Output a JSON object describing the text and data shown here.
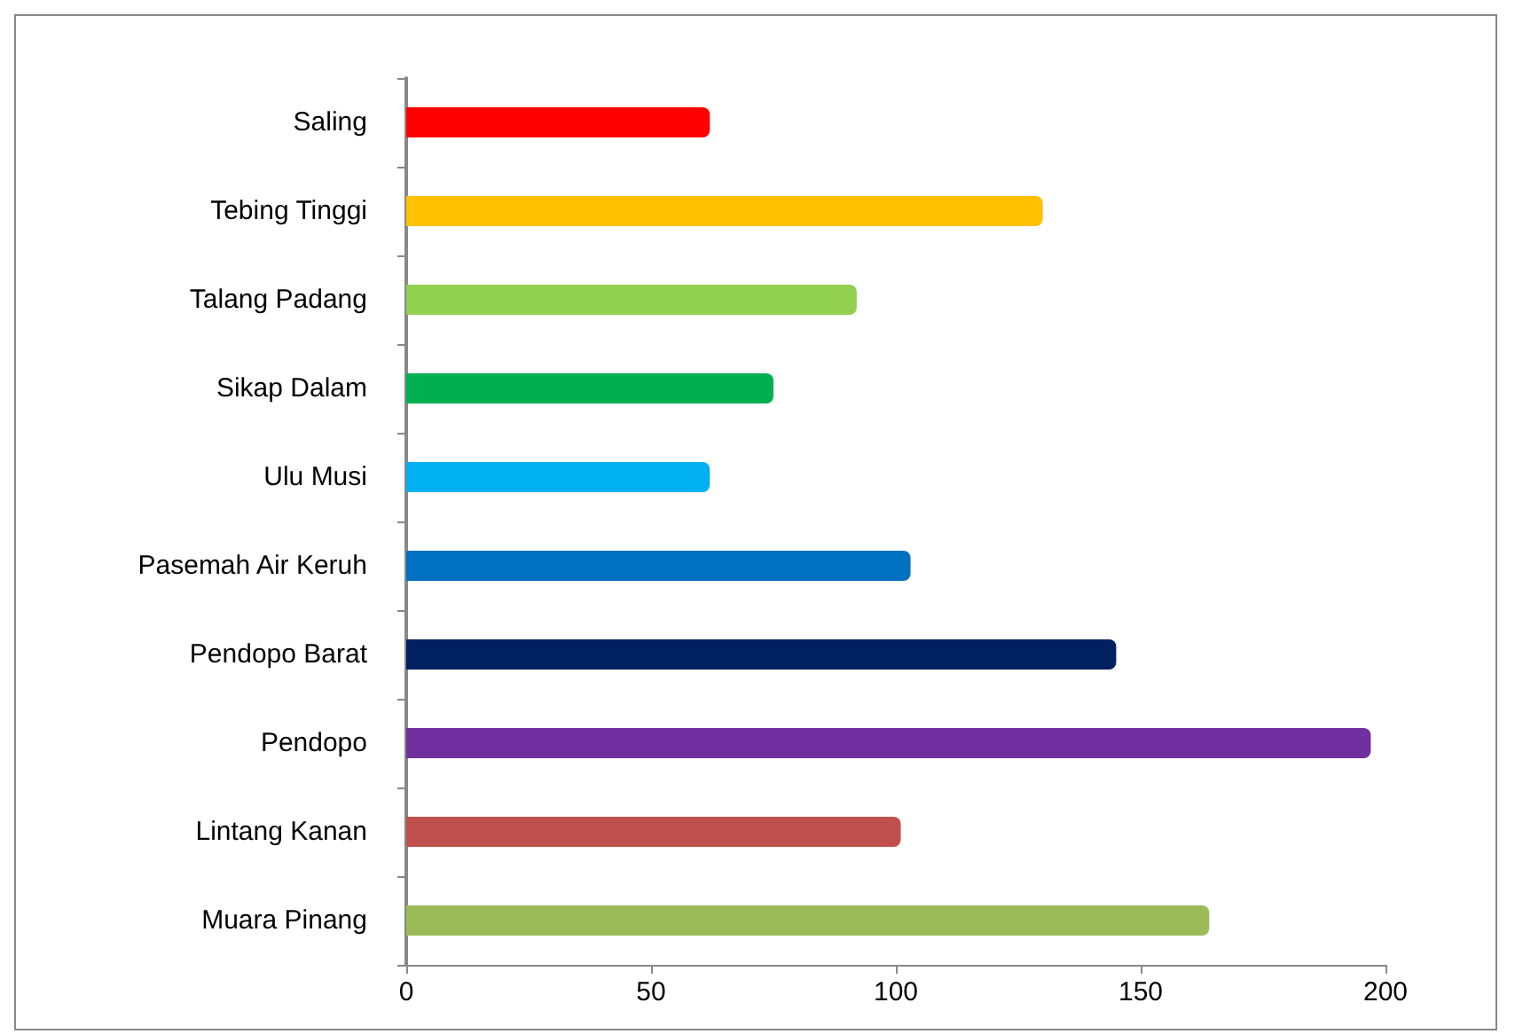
{
  "chart_data": {
    "type": "bar",
    "orientation": "horizontal",
    "categories": [
      "Saling",
      "Tebing Tinggi",
      "Talang Padang",
      "Sikap Dalam",
      "Ulu Musi",
      "Pasemah Air Keruh",
      "Pendopo Barat",
      "Pendopo",
      "Lintang Kanan",
      "Muara Pinang"
    ],
    "values": [
      62,
      130,
      92,
      75,
      62,
      103,
      145,
      197,
      101,
      164
    ],
    "colors": [
      "#ff0000",
      "#ffc000",
      "#92d050",
      "#00b050",
      "#00b0f0",
      "#0070c0",
      "#002060",
      "#7030a0",
      "#c0504d",
      "#9bbb59"
    ],
    "xlim": [
      0,
      200
    ],
    "xticks": [
      0,
      50,
      100,
      150,
      200
    ],
    "grid": false
  }
}
